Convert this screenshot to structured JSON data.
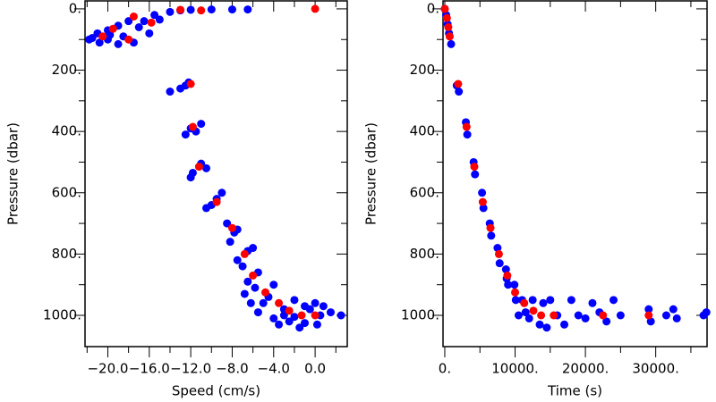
{
  "chart_data": [
    {
      "type": "scatter",
      "xlabel": "Speed (cm/s)",
      "ylabel": "Pressure (dbar)",
      "xlim": [
        -22.2,
        3.1
      ],
      "ylim": [
        -26,
        1102
      ],
      "y_inverted": true,
      "xticks": [
        {
          "value": -20,
          "label": "−20.0"
        },
        {
          "value": -16,
          "label": "−16.0"
        },
        {
          "value": -12,
          "label": "−12.0"
        },
        {
          "value": -8,
          "label": "−8.0"
        },
        {
          "value": -4,
          "label": "−4.0"
        },
        {
          "value": 0,
          "label": "0.0"
        }
      ],
      "xticks_minor": [
        -22,
        -18,
        -14,
        -10,
        -6,
        -2,
        2
      ],
      "yticks": [
        {
          "value": 0,
          "label": "0."
        },
        {
          "value": 200,
          "label": "200."
        },
        {
          "value": 400,
          "label": "400."
        },
        {
          "value": 600,
          "label": "600."
        },
        {
          "value": 800,
          "label": "800."
        },
        {
          "value": 1000,
          "label": "1000."
        }
      ],
      "yticks_minor": [
        100,
        300,
        500,
        700,
        900
      ],
      "series": [
        {
          "color": "#0000ff",
          "x": [
            -21,
            -21.5,
            -20.8,
            -20,
            -19,
            -19,
            -18.5,
            -17.5,
            -17,
            -16.5,
            -15.5,
            -15,
            -14,
            -13,
            -12,
            -10,
            -8,
            -6.5,
            -18,
            -20,
            -16,
            -21.8,
            -19.8,
            -14,
            -13,
            -12.5,
            -12.2,
            -12.5,
            -11.5,
            -11,
            -12,
            -11.8,
            -11,
            -10.5,
            -12,
            -10,
            -9.5,
            -9,
            -10.5,
            -8.5,
            -7.8,
            -8.2,
            -7.5,
            -7.5,
            -6.5,
            -7,
            -6,
            -6.5,
            -5.5,
            -5.8,
            -6.8,
            -5,
            -4.5,
            -4,
            -5.5,
            -3,
            -2.5,
            -3.5,
            -2,
            -1,
            -1.5,
            0,
            0.5,
            0.2,
            -0.5,
            1.5,
            2.5,
            -4,
            -2,
            -1,
            0.8,
            -6.2,
            -3
          ],
          "values": [
            80,
            95,
            110,
            70,
            55,
            115,
            90,
            110,
            60,
            40,
            20,
            35,
            10,
            5,
            3,
            2,
            2,
            2,
            40,
            100,
            80,
            100,
            85,
            270,
            260,
            250,
            240,
            410,
            400,
            375,
            390,
            535,
            505,
            520,
            550,
            640,
            620,
            600,
            650,
            700,
            730,
            760,
            720,
            820,
            790,
            840,
            780,
            890,
            860,
            910,
            930,
            960,
            940,
            900,
            990,
            980,
            1020,
            1030,
            950,
            970,
            1040,
            960,
            1000,
            1030,
            980,
            990,
            1000,
            1010,
            1005,
            1025,
            970,
            960,
            1000
          ]
        },
        {
          "color": "#ff0000",
          "x": [
            -19.5,
            -18,
            -17.5,
            -15.8,
            -13,
            -11,
            0,
            -12,
            -11.8,
            -11.2,
            -9.5,
            -8,
            -6.8,
            -6,
            -4.8,
            -3.5,
            -2.5,
            -1.3,
            0,
            -20.5
          ],
          "values": [
            65,
            100,
            25,
            45,
            3,
            5,
            0,
            245,
            385,
            515,
            630,
            715,
            800,
            870,
            925,
            960,
            985,
            1000,
            1000,
            90
          ]
        }
      ]
    },
    {
      "type": "scatter",
      "xlabel": "Time (s)",
      "ylabel": "Pressure (dbar)",
      "xlim": [
        -250,
        37300
      ],
      "ylim": [
        -26,
        1102
      ],
      "y_inverted": true,
      "xticks": [
        {
          "value": 0,
          "label": "0."
        },
        {
          "value": 10000,
          "label": "10000."
        },
        {
          "value": 20000,
          "label": "20000."
        },
        {
          "value": 30000,
          "label": "30000."
        }
      ],
      "xticks_minor": [
        5000,
        15000,
        25000,
        35000
      ],
      "yticks": [
        {
          "value": 0,
          "label": "0."
        },
        {
          "value": 200,
          "label": "200."
        },
        {
          "value": 400,
          "label": "400."
        },
        {
          "value": 600,
          "label": "600."
        },
        {
          "value": 800,
          "label": "800."
        },
        {
          "value": 1000,
          "label": "1000."
        }
      ],
      "yticks_minor": [
        100,
        300,
        500,
        700,
        900
      ],
      "series": [
        {
          "color": "#0000ff",
          "x": [
            0,
            200,
            400,
            600,
            900,
            1700,
            2000,
            3000,
            3200,
            4100,
            4300,
            5300,
            5500,
            6400,
            6600,
            7500,
            7800,
            8700,
            9000,
            9900,
            10100,
            11000,
            11500,
            12000,
            12500,
            13500,
            14000,
            15000,
            16000,
            17000,
            18000,
            19000,
            20000,
            21000,
            22000,
            23000,
            24000,
            25000,
            29000,
            29300,
            31500,
            32500,
            33000,
            36800,
            37200,
            14500,
            8800,
            10500
          ],
          "values": [
            0,
            20,
            50,
            80,
            115,
            250,
            270,
            370,
            410,
            500,
            540,
            600,
            650,
            700,
            740,
            780,
            830,
            850,
            900,
            900,
            950,
            950,
            990,
            1010,
            950,
            1030,
            960,
            950,
            1000,
            1030,
            950,
            1000,
            1010,
            960,
            990,
            1020,
            950,
            1000,
            980,
            1020,
            1000,
            980,
            1010,
            1000,
            990,
            1040,
            880,
            1000
          ]
        },
        {
          "color": "#ff0000",
          "x": [
            0,
            300,
            500,
            700,
            1900,
            3100,
            4200,
            5400,
            6500,
            7700,
            8900,
            10000,
            11300,
            12600,
            13700,
            15500,
            22500,
            29000
          ],
          "values": [
            0,
            30,
            60,
            90,
            245,
            385,
            515,
            630,
            715,
            800,
            870,
            925,
            960,
            985,
            1000,
            1000,
            1000,
            1000
          ]
        }
      ]
    }
  ]
}
